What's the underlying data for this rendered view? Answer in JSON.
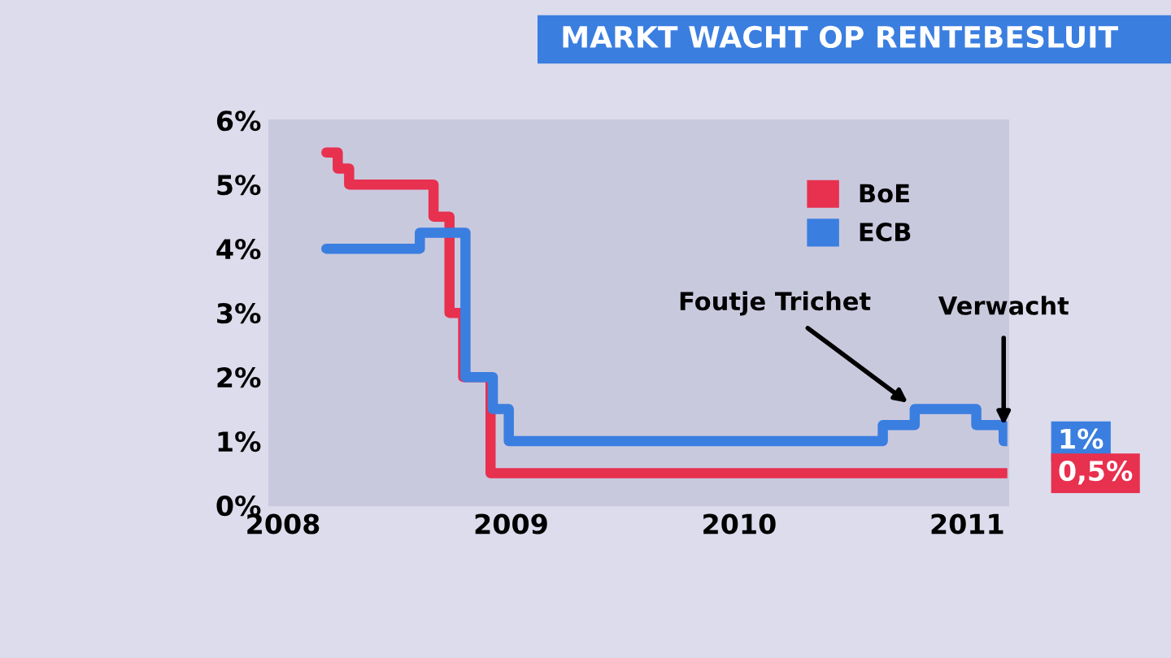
{
  "chart_data": {
    "type": "step",
    "title": "MARKT WACHT OP RENTEBESLUIT",
    "series": [
      {
        "name": "BoE",
        "color": "#e8304f",
        "x": [
          2008.19,
          2008.24,
          2008.29,
          2008.66,
          2008.73,
          2008.79,
          2008.91,
          2011.18
        ],
        "values": [
          5.5,
          5.25,
          5.0,
          4.5,
          3.0,
          2.0,
          0.5,
          0.5
        ]
      },
      {
        "name": "ECB",
        "color": "#3a7ee0",
        "x": [
          2008.19,
          2008.6,
          2008.8,
          2008.92,
          2008.99,
          2010.63,
          2010.77,
          2011.04,
          2011.16,
          2011.18
        ],
        "values": [
          4.0,
          4.25,
          2.0,
          1.5,
          1.0,
          1.25,
          1.5,
          1.25,
          1.0,
          1.0
        ]
      }
    ],
    "xlim": [
      2007.94,
      2011.18
    ],
    "xticks": [
      2008,
      2009,
      2010,
      2011
    ],
    "ylim": [
      0,
      6
    ],
    "yticks": [
      {
        "value": 0,
        "label": "0%"
      },
      {
        "value": 1,
        "label": "1%"
      },
      {
        "value": 2,
        "label": "2%"
      },
      {
        "value": 3,
        "label": "3%"
      },
      {
        "value": 4,
        "label": "4%"
      },
      {
        "value": 5,
        "label": "5%"
      },
      {
        "value": 6,
        "label": "6%"
      }
    ],
    "annotations": [
      {
        "text": "Foutje Trichet",
        "x": 2010.74,
        "y": 1.6
      },
      {
        "text": "Verwacht",
        "x": 2011.16,
        "y": 1.25
      },
      {
        "text": "1%",
        "x": 2011.18,
        "y": 1
      },
      {
        "text": "0,5%",
        "x": 2011.18,
        "y": 0.5
      }
    ],
    "legend": "top right",
    "grid": false,
    "line_style": "solid",
    "marker": "none"
  }
}
